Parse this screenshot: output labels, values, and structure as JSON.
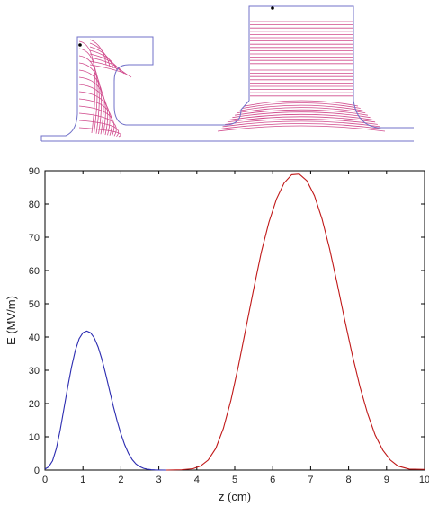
{
  "geometry_figure": {
    "outline_color": "#7070c8",
    "field_line_color": "#d04a8c",
    "marker_color": "#000000"
  },
  "chart_data": {
    "type": "line",
    "title": "",
    "xlabel": "z (cm)",
    "ylabel": "E (MV/m)",
    "xlim": [
      0,
      10
    ],
    "ylim": [
      0,
      90
    ],
    "xticks": [
      0,
      1,
      2,
      3,
      4,
      5,
      6,
      7,
      8,
      9,
      10
    ],
    "yticks": [
      0,
      10,
      20,
      30,
      40,
      50,
      60,
      70,
      80,
      90
    ],
    "grid": false,
    "legend": "none",
    "series": [
      {
        "color": "#2b2bb0",
        "x": [
          0,
          0.1,
          0.2,
          0.3,
          0.4,
          0.5,
          0.6,
          0.7,
          0.8,
          0.9,
          1.0,
          1.1,
          1.2,
          1.3,
          1.4,
          1.5,
          1.6,
          1.7,
          1.8,
          1.9,
          2.0,
          2.1,
          2.2,
          2.3,
          2.4,
          2.5,
          2.6,
          2.7,
          2.8,
          2.9,
          3.0,
          3.2
        ],
        "y": [
          0.3,
          1.0,
          2.8,
          6.5,
          12.0,
          18.5,
          25.0,
          31.0,
          36.0,
          39.5,
          41.3,
          41.8,
          41.3,
          39.7,
          37.0,
          33.3,
          28.8,
          24.0,
          19.2,
          14.8,
          10.9,
          7.6,
          5.0,
          3.1,
          1.8,
          1.0,
          0.5,
          0.25,
          0.12,
          0.05,
          0.02,
          0.0
        ]
      },
      {
        "color": "#c01818",
        "x": [
          3.2,
          3.6,
          3.9,
          4.1,
          4.3,
          4.5,
          4.7,
          4.9,
          5.1,
          5.3,
          5.5,
          5.7,
          5.9,
          6.1,
          6.3,
          6.5,
          6.7,
          6.9,
          7.1,
          7.3,
          7.5,
          7.7,
          7.9,
          8.1,
          8.3,
          8.5,
          8.7,
          8.9,
          9.1,
          9.3,
          9.6,
          10.0
        ],
        "y": [
          0.0,
          0.1,
          0.4,
          1.2,
          3.0,
          6.5,
          12.5,
          21.0,
          31.5,
          43.0,
          54.5,
          65.5,
          74.5,
          81.5,
          86.3,
          88.8,
          89.0,
          87.0,
          82.5,
          75.5,
          66.5,
          56.0,
          45.0,
          34.5,
          25.0,
          17.0,
          10.5,
          6.0,
          3.0,
          1.2,
          0.3,
          0.2
        ]
      }
    ]
  }
}
